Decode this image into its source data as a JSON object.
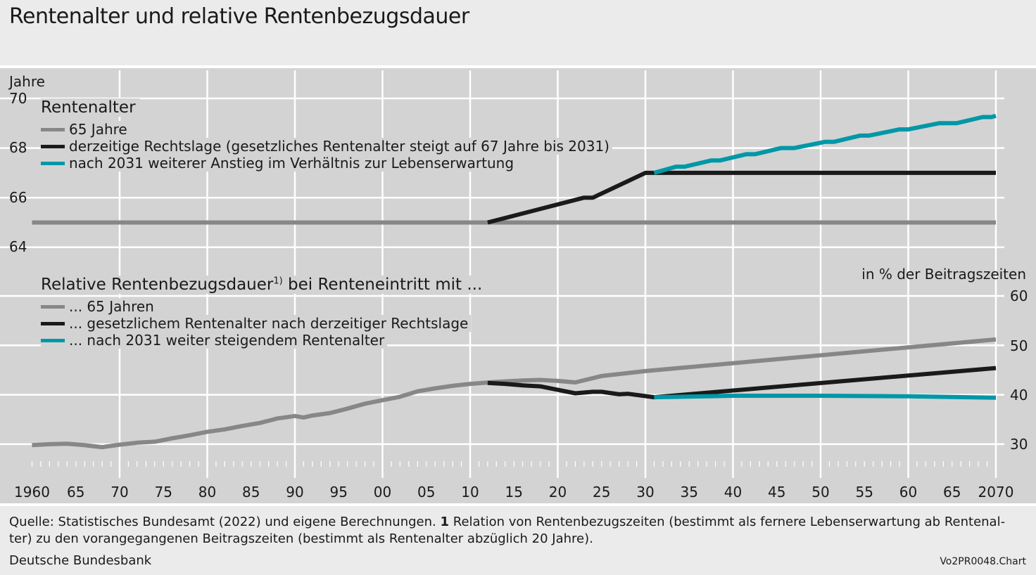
{
  "title": "Rentenalter und relative Rentenbezugsdauer",
  "colors": {
    "gray": "#878787",
    "black": "#1a1a1a",
    "teal": "#0097a7",
    "grid": "#ffffff",
    "plot_bg": "#d3d3d3"
  },
  "chart_data": [
    {
      "type": "line",
      "title": "Rentenalter",
      "ylabel": "Jahre",
      "ylim": [
        64,
        70
      ],
      "yticks": [
        "70",
        "68",
        "66",
        "64"
      ],
      "series": [
        {
          "name": "65 Jahre",
          "color": "gray",
          "points": [
            [
              1960,
              65
            ],
            [
              2070,
              65
            ]
          ]
        },
        {
          "name": "derzeitige Rechtslage (gesetzliches Rentenalter steigt auf 67 Jahre bis 2031)",
          "color": "black",
          "points": [
            [
              2012,
              65
            ],
            [
              2023,
              66
            ],
            [
              2024,
              66
            ],
            [
              2030,
              67
            ],
            [
              2070,
              67
            ]
          ]
        },
        {
          "name": "nach 2031 weiterer Anstieg im Verhältnis zur Lebenserwartung",
          "color": "teal",
          "points": [
            [
              2031,
              67
            ],
            [
              2033.5,
              67.25
            ],
            [
              2034.5,
              67.25
            ],
            [
              2037.5,
              67.5
            ],
            [
              2038.5,
              67.5
            ],
            [
              2041.5,
              67.75
            ],
            [
              2042.5,
              67.75
            ],
            [
              2045.5,
              68
            ],
            [
              2047,
              68
            ],
            [
              2050.5,
              68.25
            ],
            [
              2051.5,
              68.25
            ],
            [
              2054.5,
              68.5
            ],
            [
              2055.5,
              68.5
            ],
            [
              2059,
              68.75
            ],
            [
              2060,
              68.75
            ],
            [
              2063.5,
              69
            ],
            [
              2065.5,
              69
            ],
            [
              2068.5,
              69.25
            ],
            [
              2069.5,
              69.25
            ],
            [
              2070,
              69.3
            ]
          ]
        }
      ]
    },
    {
      "type": "line",
      "title": "Relative Rentenbezugsdauer",
      "title_sup": "1)",
      "title_suffix": "bei Renteneintritt mit ...",
      "ylabel": "in % der Beitragszeiten",
      "ylim": [
        25,
        60
      ],
      "yticks": [
        "60",
        "50",
        "40",
        "30"
      ],
      "series": [
        {
          "name": "... 65 Jahren",
          "color": "gray",
          "points": [
            [
              1960,
              29.8
            ],
            [
              1962,
              30
            ],
            [
              1964,
              30.1
            ],
            [
              1966,
              29.8
            ],
            [
              1968,
              29.4
            ],
            [
              1970,
              29.9
            ],
            [
              1972,
              30.3
            ],
            [
              1974,
              30.5
            ],
            [
              1976,
              31.2
            ],
            [
              1978,
              31.8
            ],
            [
              1980,
              32.5
            ],
            [
              1982,
              33
            ],
            [
              1984,
              33.7
            ],
            [
              1986,
              34.3
            ],
            [
              1988,
              35.2
            ],
            [
              1990,
              35.7
            ],
            [
              1991,
              35.4
            ],
            [
              1992,
              35.8
            ],
            [
              1994,
              36.3
            ],
            [
              1996,
              37.2
            ],
            [
              1998,
              38.2
            ],
            [
              2000,
              38.9
            ],
            [
              2002,
              39.6
            ],
            [
              2004,
              40.7
            ],
            [
              2006,
              41.3
            ],
            [
              2008,
              41.8
            ],
            [
              2010,
              42.2
            ],
            [
              2013,
              42.6
            ],
            [
              2016,
              42.9
            ],
            [
              2018,
              43
            ],
            [
              2020,
              42.8
            ],
            [
              2022,
              42.5
            ],
            [
              2025,
              43.8
            ],
            [
              2030,
              44.8
            ],
            [
              2070,
              51.2
            ]
          ]
        },
        {
          "name": "... gesetzlichem Rentenalter nach derzeitiger Rechtslage",
          "color": "black",
          "points": [
            [
              2012,
              42.4
            ],
            [
              2014,
              42.2
            ],
            [
              2016,
              41.9
            ],
            [
              2018,
              41.7
            ],
            [
              2020,
              41
            ],
            [
              2022,
              40.3
            ],
            [
              2024,
              40.6
            ],
            [
              2025,
              40.6
            ],
            [
              2027,
              40.1
            ],
            [
              2028,
              40.2
            ],
            [
              2031,
              39.5
            ],
            [
              2070,
              45.4
            ]
          ]
        },
        {
          "name": "... nach 2031 weiter steigendem Rentenalter",
          "color": "teal",
          "points": [
            [
              2031,
              39.5
            ],
            [
              2040,
              39.8
            ],
            [
              2050,
              39.8
            ],
            [
              2060,
              39.7
            ],
            [
              2070,
              39.4
            ]
          ]
        }
      ]
    }
  ],
  "x_axis": {
    "range": [
      1960,
      2070
    ],
    "ticks": [
      "1960",
      "65",
      "70",
      "75",
      "80",
      "85",
      "90",
      "95",
      "00",
      "05",
      "10",
      "15",
      "20",
      "25",
      "30",
      "35",
      "40",
      "45",
      "50",
      "55",
      "60",
      "65",
      "2070"
    ]
  },
  "footnote": {
    "source": "Quelle: Statistisches Bundesamt (2022) und eigene Berechnungen.",
    "num": "1",
    "text": "Relation von Rentenbezugszeiten (bestimmt als fernere Lebenserwartung ab Rentenal-",
    "line2": "ter) zu den vorangegangenen Beitragszeiten (bestimmt als Rentenalter abzüglich 20 Jahre).",
    "publisher": "Deutsche Bundesbank",
    "code": "Vo2PR0048.Chart"
  }
}
